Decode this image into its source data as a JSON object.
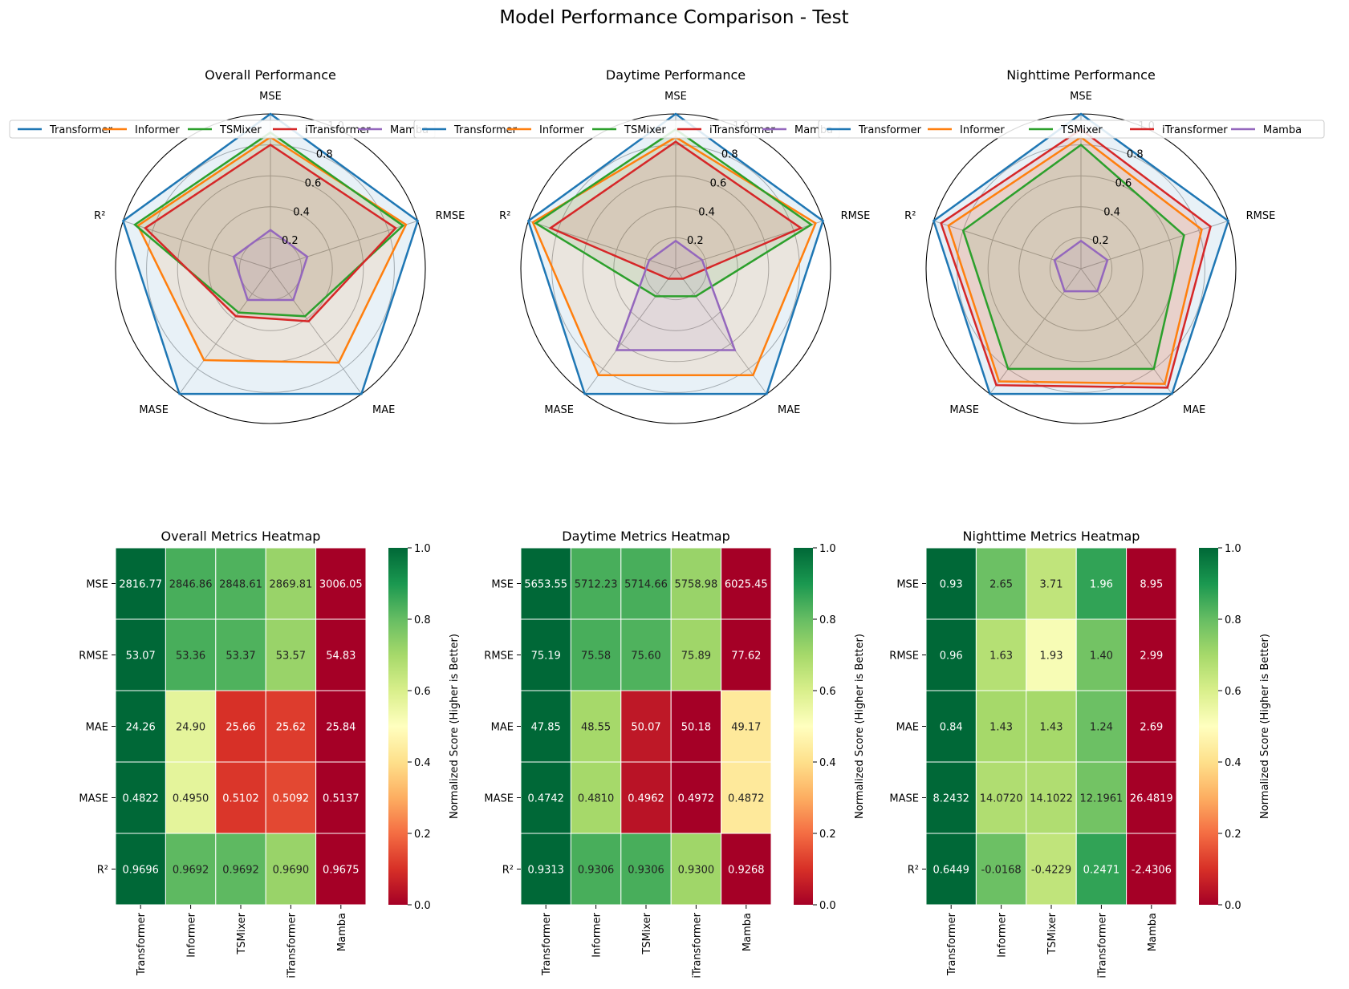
{
  "title": "Model Performance Comparison - Test",
  "models": [
    "Transformer",
    "Informer",
    "TSMixer",
    "iTransformer",
    "Mamba"
  ],
  "metrics": [
    "MSE",
    "RMSE",
    "MAE",
    "MASE",
    "R²"
  ],
  "colors": {
    "Transformer": "#1f77b4",
    "Informer": "#ff7f0e",
    "TSMixer": "#2ca02c",
    "iTransformer": "#d62728",
    "Mamba": "#9467bd"
  },
  "colorbar_label": "Normalized Score (Higher is Better)",
  "colormap": "RdYlGn",
  "chart_data": [
    {
      "type": "radar",
      "title": "Overall Performance",
      "axes": [
        "MSE",
        "RMSE",
        "MAE",
        "MASE",
        "R²"
      ],
      "rlim": [
        0,
        1.0
      ],
      "rticks": [
        "0.2",
        "0.4",
        "0.6",
        "0.8",
        "1.0"
      ],
      "legend": "top",
      "series": [
        {
          "name": "Transformer",
          "values": [
            1.0,
            1.0,
            1.0,
            1.0,
            1.0
          ]
        },
        {
          "name": "Informer",
          "values": [
            0.85,
            0.92,
            0.75,
            0.73,
            0.9
          ]
        },
        {
          "name": "TSMixer",
          "values": [
            0.88,
            0.9,
            0.38,
            0.35,
            0.92
          ]
        },
        {
          "name": "iTransformer",
          "values": [
            0.8,
            0.85,
            0.42,
            0.38,
            0.85
          ]
        },
        {
          "name": "Mamba",
          "values": [
            0.25,
            0.25,
            0.25,
            0.25,
            0.25
          ]
        }
      ]
    },
    {
      "type": "radar",
      "title": "Daytime Performance",
      "axes": [
        "MSE",
        "RMSE",
        "MAE",
        "MASE",
        "R²"
      ],
      "rlim": [
        0,
        1.0
      ],
      "rticks": [
        "0.2",
        "0.4",
        "0.6",
        "0.8",
        "1.0"
      ],
      "legend": "top",
      "series": [
        {
          "name": "Transformer",
          "values": [
            1.0,
            1.0,
            1.0,
            1.0,
            1.0
          ]
        },
        {
          "name": "Informer",
          "values": [
            0.85,
            0.95,
            0.85,
            0.85,
            0.97
          ]
        },
        {
          "name": "TSMixer",
          "values": [
            0.9,
            0.92,
            0.22,
            0.22,
            0.95
          ]
        },
        {
          "name": "iTransformer",
          "values": [
            0.82,
            0.85,
            0.08,
            0.08,
            0.85
          ]
        },
        {
          "name": "Mamba",
          "values": [
            0.18,
            0.18,
            0.65,
            0.65,
            0.18
          ]
        }
      ]
    },
    {
      "type": "radar",
      "title": "Nighttime Performance",
      "axes": [
        "MSE",
        "RMSE",
        "MAE",
        "MASE",
        "R²"
      ],
      "rlim": [
        0,
        1.0
      ],
      "rticks": [
        "0.2",
        "0.4",
        "0.6",
        "0.8",
        "1.0"
      ],
      "legend": "top",
      "series": [
        {
          "name": "Transformer",
          "values": [
            1.0,
            1.0,
            1.0,
            1.0,
            1.0
          ]
        },
        {
          "name": "Informer",
          "values": [
            0.85,
            0.82,
            0.92,
            0.9,
            0.9
          ]
        },
        {
          "name": "TSMixer",
          "values": [
            0.8,
            0.7,
            0.8,
            0.8,
            0.8
          ]
        },
        {
          "name": "iTransformer",
          "values": [
            0.9,
            0.88,
            0.95,
            0.93,
            0.95
          ]
        },
        {
          "name": "Mamba",
          "values": [
            0.18,
            0.18,
            0.18,
            0.18,
            0.18
          ]
        }
      ]
    },
    {
      "type": "heatmap",
      "title": "Overall Metrics Heatmap",
      "rows": [
        "MSE",
        "RMSE",
        "MAE",
        "MASE",
        "R²"
      ],
      "columns": [
        "Transformer",
        "Informer",
        "TSMixer",
        "iTransformer",
        "Mamba"
      ],
      "values": [
        [
          "2816.77",
          "2846.86",
          "2848.61",
          "2869.81",
          "3006.05"
        ],
        [
          "53.07",
          "53.36",
          "53.37",
          "53.57",
          "54.83"
        ],
        [
          "24.26",
          "24.90",
          "25.66",
          "25.62",
          "25.84"
        ],
        [
          "0.4822",
          "0.4950",
          "0.5102",
          "0.5092",
          "0.5137"
        ],
        [
          "0.9696",
          "0.9692",
          "0.9692",
          "0.9690",
          "0.9675"
        ]
      ],
      "scores": [
        [
          1.0,
          0.84,
          0.83,
          0.72,
          0.0
        ],
        [
          1.0,
          0.84,
          0.83,
          0.72,
          0.0
        ],
        [
          1.0,
          0.57,
          0.1,
          0.12,
          0.0
        ],
        [
          1.0,
          0.57,
          0.11,
          0.14,
          0.0
        ],
        [
          1.0,
          0.81,
          0.81,
          0.72,
          0.0
        ]
      ],
      "colorbar": {
        "range": [
          0.0,
          1.0
        ],
        "ticks": [
          "0.0",
          "0.2",
          "0.4",
          "0.6",
          "0.8",
          "1.0"
        ]
      }
    },
    {
      "type": "heatmap",
      "title": "Daytime Metrics Heatmap",
      "rows": [
        "MSE",
        "RMSE",
        "MAE",
        "MASE",
        "R²"
      ],
      "columns": [
        "Transformer",
        "Informer",
        "TSMixer",
        "iTransformer",
        "Mamba"
      ],
      "values": [
        [
          "5653.55",
          "5712.23",
          "5714.66",
          "5758.98",
          "6025.45"
        ],
        [
          "75.19",
          "75.58",
          "75.60",
          "75.89",
          "77.62"
        ],
        [
          "47.85",
          "48.55",
          "50.07",
          "50.18",
          "49.17"
        ],
        [
          "0.4742",
          "0.4810",
          "0.4962",
          "0.4972",
          "0.4872"
        ],
        [
          "0.9313",
          "0.9306",
          "0.9306",
          "0.9300",
          "0.9268"
        ]
      ],
      "scores": [
        [
          1.0,
          0.84,
          0.84,
          0.72,
          0.0
        ],
        [
          1.0,
          0.84,
          0.83,
          0.71,
          0.0
        ],
        [
          1.0,
          0.7,
          0.05,
          0.0,
          0.43
        ],
        [
          1.0,
          0.7,
          0.04,
          0.0,
          0.43
        ],
        [
          1.0,
          0.84,
          0.84,
          0.71,
          0.0
        ]
      ],
      "colorbar": {
        "range": [
          0.0,
          1.0
        ],
        "ticks": [
          "0.0",
          "0.2",
          "0.4",
          "0.6",
          "0.8",
          "1.0"
        ]
      }
    },
    {
      "type": "heatmap",
      "title": "Nighttime Metrics Heatmap",
      "rows": [
        "MSE",
        "RMSE",
        "MAE",
        "MASE",
        "R²"
      ],
      "columns": [
        "Transformer",
        "Informer",
        "TSMixer",
        "iTransformer",
        "Mamba"
      ],
      "values": [
        [
          "0.93",
          "2.65",
          "3.71",
          "1.96",
          "8.95"
        ],
        [
          "0.96",
          "1.63",
          "1.93",
          "1.40",
          "2.99"
        ],
        [
          "0.84",
          "1.43",
          "1.43",
          "1.24",
          "2.69"
        ],
        [
          "8.2432",
          "14.0720",
          "14.1022",
          "12.1961",
          "26.4819"
        ],
        [
          "0.6449",
          "-0.0168",
          "-0.4229",
          "0.2471",
          "-2.4306"
        ]
      ],
      "scores": [
        [
          1.0,
          0.79,
          0.65,
          0.87,
          0.0
        ],
        [
          1.0,
          0.67,
          0.52,
          0.78,
          0.0
        ],
        [
          1.0,
          0.7,
          0.7,
          0.79,
          0.0
        ],
        [
          1.0,
          0.68,
          0.68,
          0.78,
          0.0
        ],
        [
          1.0,
          0.79,
          0.65,
          0.87,
          0.0
        ]
      ],
      "colorbar": {
        "range": [
          0.0,
          1.0
        ],
        "ticks": [
          "0.0",
          "0.2",
          "0.4",
          "0.6",
          "0.8",
          "1.0"
        ]
      }
    }
  ]
}
